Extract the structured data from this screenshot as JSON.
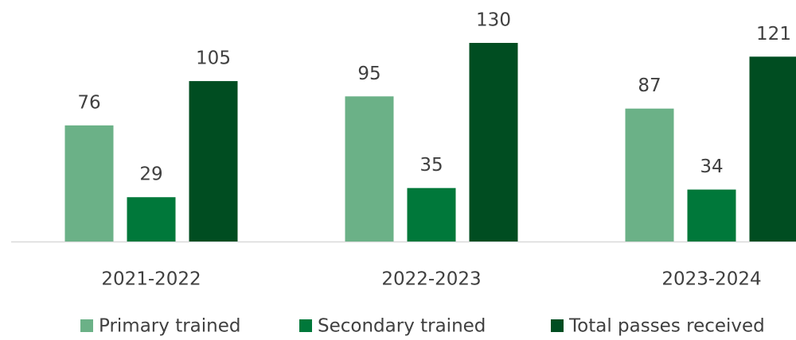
{
  "chart_data": {
    "type": "bar",
    "categories": [
      "2021-2022",
      "2022-2023",
      "2023-2024"
    ],
    "series": [
      {
        "name": "Primary trained",
        "color": "#6bb187",
        "values": [
          76,
          95,
          87
        ]
      },
      {
        "name": "Secondary trained",
        "color": "#00783a",
        "values": [
          29,
          35,
          34
        ]
      },
      {
        "name": "Total passes received",
        "color": "#004d21",
        "values": [
          105,
          130,
          121
        ]
      }
    ],
    "legend": "bottom"
  }
}
